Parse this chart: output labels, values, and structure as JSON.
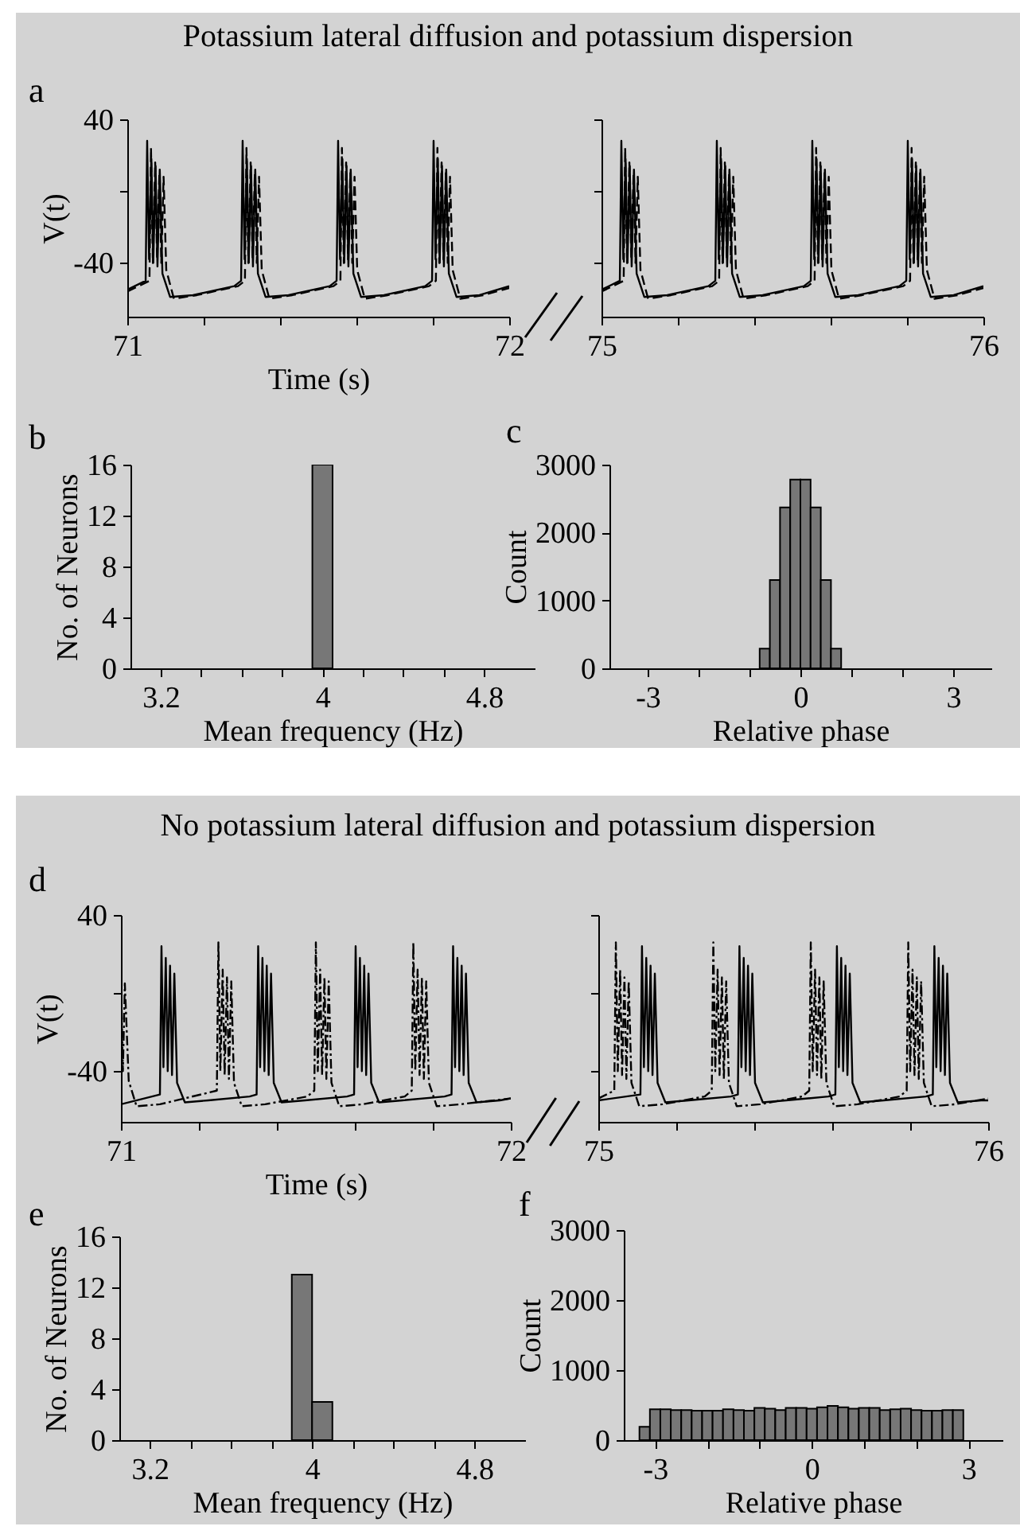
{
  "chart_data": [
    {
      "type": "line",
      "title": "Potassium lateral diffusion and potassium dispersion",
      "annotations": [
        "a"
      ],
      "xlabel": "Time (s)",
      "ylabel": "V(t)",
      "xlim": [
        71,
        72
      ],
      "xticks": [
        71,
        {
          "value": 71.2,
          "label": null
        },
        {
          "value": 71.4,
          "label": null
        },
        {
          "value": 71.6,
          "label": null
        },
        {
          "value": 71.8,
          "label": null
        },
        72
      ],
      "ylim": [
        -70,
        40
      ],
      "yticks": [
        -40,
        {
          "value": 0,
          "label": null
        },
        40
      ],
      "series": [
        {
          "color": "#000000",
          "line_style": "solid",
          "x": [
            71.0,
            71.048,
            71.052,
            71.057,
            71.063,
            71.068,
            71.074,
            71.079,
            71.085,
            71.092,
            71.112,
            71.172,
            71.28,
            71.298,
            71.302,
            71.307,
            71.313,
            71.318,
            71.324,
            71.329,
            71.335,
            71.342,
            71.362,
            71.422,
            71.53,
            71.548,
            71.552,
            71.557,
            71.563,
            71.568,
            71.574,
            71.579,
            71.585,
            71.592,
            71.612,
            71.672,
            71.78,
            71.798,
            71.802,
            71.807,
            71.813,
            71.818,
            71.824,
            71.829,
            71.835,
            71.842,
            71.862,
            71.922,
            72.0
          ],
          "values": [
            -55,
            -50,
            28,
            -38,
            18,
            -40,
            14,
            -42,
            12,
            -46,
            -59,
            -58,
            -53,
            -50,
            28,
            -38,
            18,
            -40,
            14,
            -42,
            12,
            -46,
            -59,
            -58,
            -53,
            -50,
            28,
            -38,
            18,
            -40,
            14,
            -42,
            12,
            -46,
            -59,
            -58,
            -53,
            -50,
            28,
            -38,
            18,
            -40,
            14,
            -42,
            12,
            -46,
            -59,
            -58,
            -53
          ]
        },
        {
          "color": "#000000",
          "line_style": "dashed",
          "x": [
            71.0,
            71.058,
            71.062,
            71.067,
            71.073,
            71.078,
            71.084,
            71.089,
            71.095,
            71.102,
            71.122,
            71.182,
            71.29,
            71.308,
            71.312,
            71.317,
            71.323,
            71.328,
            71.334,
            71.339,
            71.345,
            71.352,
            71.372,
            71.432,
            71.54,
            71.558,
            71.562,
            71.567,
            71.573,
            71.578,
            71.584,
            71.589,
            71.595,
            71.602,
            71.622,
            71.682,
            71.79,
            71.808,
            71.812,
            71.817,
            71.823,
            71.828,
            71.834,
            71.839,
            71.845,
            71.852,
            71.872,
            71.932,
            72.0
          ],
          "values": [
            -56,
            -50,
            24,
            -40,
            16,
            -38,
            10,
            -40,
            8,
            -44,
            -60,
            -58,
            -53,
            -50,
            24,
            -40,
            16,
            -38,
            10,
            -40,
            8,
            -44,
            -60,
            -58,
            -53,
            -50,
            24,
            -40,
            16,
            -38,
            10,
            -40,
            8,
            -44,
            -60,
            -58,
            -53,
            -50,
            24,
            -40,
            16,
            -38,
            10,
            -40,
            8,
            -44,
            -60,
            -58,
            -54
          ]
        }
      ]
    },
    {
      "type": "line",
      "tick_labels": "x",
      "xlim": [
        75,
        76
      ],
      "xticks": [
        75,
        {
          "value": 75.2,
          "label": null
        },
        {
          "value": 75.4,
          "label": null
        },
        {
          "value": 75.6,
          "label": null
        },
        {
          "value": 75.8,
          "label": null
        },
        76
      ],
      "ylim": [
        -70,
        40
      ],
      "yticks": [
        -40,
        0,
        40
      ],
      "series": [
        {
          "color": "#000000",
          "line_style": "solid",
          "x": [
            75.0,
            75.048,
            75.052,
            75.057,
            75.063,
            75.068,
            75.074,
            75.079,
            75.085,
            75.092,
            75.112,
            75.172,
            75.28,
            75.298,
            75.302,
            75.307,
            75.313,
            75.318,
            75.324,
            75.329,
            75.335,
            75.342,
            75.362,
            75.422,
            75.53,
            75.548,
            75.552,
            75.557,
            75.563,
            75.568,
            75.574,
            75.579,
            75.585,
            75.592,
            75.612,
            75.672,
            75.78,
            75.798,
            75.802,
            75.807,
            75.813,
            75.818,
            75.824,
            75.829,
            75.835,
            75.842,
            75.862,
            75.922,
            76.0
          ],
          "values": [
            -55,
            -50,
            28,
            -38,
            18,
            -40,
            14,
            -42,
            12,
            -46,
            -59,
            -58,
            -53,
            -50,
            28,
            -38,
            18,
            -40,
            14,
            -42,
            12,
            -46,
            -59,
            -58,
            -53,
            -50,
            28,
            -38,
            18,
            -40,
            14,
            -42,
            12,
            -46,
            -59,
            -58,
            -53,
            -50,
            28,
            -38,
            18,
            -40,
            14,
            -42,
            12,
            -46,
            -59,
            -58,
            -53
          ]
        },
        {
          "color": "#000000",
          "line_style": "dashed",
          "x": [
            75.0,
            75.058,
            75.062,
            75.067,
            75.073,
            75.078,
            75.084,
            75.089,
            75.095,
            75.102,
            75.122,
            75.182,
            75.29,
            75.308,
            75.312,
            75.317,
            75.323,
            75.328,
            75.334,
            75.339,
            75.345,
            75.352,
            75.372,
            75.432,
            75.54,
            75.558,
            75.562,
            75.567,
            75.573,
            75.578,
            75.584,
            75.589,
            75.595,
            75.602,
            75.622,
            75.682,
            75.79,
            75.808,
            75.812,
            75.817,
            75.823,
            75.828,
            75.834,
            75.839,
            75.845,
            75.852,
            75.872,
            75.932,
            76.0
          ],
          "values": [
            -56,
            -50,
            24,
            -40,
            16,
            -38,
            10,
            -40,
            8,
            -44,
            -60,
            -58,
            -53,
            -50,
            24,
            -40,
            16,
            -38,
            10,
            -40,
            8,
            -44,
            -60,
            -58,
            -53,
            -50,
            24,
            -40,
            16,
            -38,
            10,
            -40,
            8,
            -44,
            -60,
            -58,
            -53,
            -50,
            24,
            -40,
            16,
            -38,
            10,
            -40,
            8,
            -44,
            -60,
            -58,
            -54
          ]
        }
      ]
    },
    {
      "type": "histogram",
      "annotations": [
        "b"
      ],
      "xlabel": "Mean frequency (Hz)",
      "ylabel": "No. of Neurons",
      "color": "#777777",
      "xlim": [
        3.05,
        5.05
      ],
      "xticks": [
        3.2,
        {
          "value": 3.4,
          "label": null
        },
        {
          "value": 3.6,
          "label": null
        },
        {
          "value": 3.8,
          "label": null
        },
        4,
        {
          "value": 4.2,
          "label": null
        },
        {
          "value": 4.4,
          "label": null
        },
        {
          "value": 4.6,
          "label": null
        },
        4.8
      ],
      "ylim": [
        0,
        16
      ],
      "yticks": [
        0,
        4,
        8,
        12,
        16
      ],
      "bins": [
        3.95,
        4.05
      ],
      "values": [
        16
      ]
    },
    {
      "type": "histogram",
      "annotations": [
        "c"
      ],
      "xlabel": "Relative phase",
      "ylabel": "Count",
      "color": "#777777",
      "xlim": [
        -3.75,
        3.75
      ],
      "xticks": [
        -3,
        {
          "value": -2,
          "label": null
        },
        {
          "value": -1,
          "label": null
        },
        0,
        {
          "value": 1,
          "label": null
        },
        {
          "value": 2,
          "label": null
        },
        3
      ],
      "ylim": [
        0,
        3000
      ],
      "yticks": [
        0,
        1000,
        2000,
        3000
      ],
      "bins": [
        -0.8,
        -0.6,
        -0.4,
        -0.2,
        0,
        0.2,
        0.4,
        0.6,
        0.8
      ],
      "values": [
        290,
        1300,
        2370,
        2780,
        2780,
        2370,
        1300,
        290
      ]
    },
    {
      "type": "line",
      "title": "No potassium lateral diffusion and potassium dispersion",
      "annotations": [
        "d"
      ],
      "xlabel": "Time (s)",
      "ylabel": "V(t)",
      "xlim": [
        71,
        72
      ],
      "xticks": [
        71,
        {
          "value": 71.2,
          "label": null
        },
        {
          "value": 71.4,
          "label": null
        },
        {
          "value": 71.6,
          "label": null
        },
        {
          "value": 71.8,
          "label": null
        },
        72
      ],
      "ylim": [
        -66,
        40
      ],
      "yticks": [
        -40,
        {
          "value": 0,
          "label": null
        },
        40
      ],
      "series": [
        {
          "color": "#000000",
          "line_style": "solid",
          "x": [
            71.0,
            71.1,
            71.104,
            71.109,
            71.115,
            71.12,
            71.126,
            71.131,
            71.137,
            71.144,
            71.164,
            71.224,
            71.33,
            71.348,
            71.352,
            71.357,
            71.363,
            71.368,
            71.374,
            71.379,
            71.385,
            71.392,
            71.412,
            71.472,
            71.58,
            71.598,
            71.602,
            71.607,
            71.613,
            71.618,
            71.624,
            71.629,
            71.635,
            71.642,
            71.662,
            71.722,
            71.83,
            71.848,
            71.852,
            71.857,
            71.863,
            71.868,
            71.874,
            71.879,
            71.885,
            71.892,
            71.912,
            71.972,
            72.0
          ],
          "values": [
            -57,
            -52,
            24,
            -38,
            18,
            -40,
            14,
            -42,
            10,
            -46,
            -56,
            -55,
            -53,
            -52,
            24,
            -38,
            18,
            -40,
            14,
            -42,
            10,
            -46,
            -56,
            -55,
            -53,
            -52,
            24,
            -38,
            18,
            -40,
            14,
            -42,
            10,
            -46,
            -56,
            -55,
            -53,
            -52,
            24,
            -38,
            18,
            -40,
            14,
            -42,
            10,
            -46,
            -56,
            -55,
            -54
          ]
        },
        {
          "color": "#000000",
          "line_style": "dashdot",
          "x": [
            71.0,
            71.005,
            71.01,
            71.02,
            71.04,
            71.1,
            71.246,
            71.25,
            71.255,
            71.261,
            71.266,
            71.272,
            71.277,
            71.283,
            71.29,
            71.31,
            71.37,
            71.478,
            71.496,
            71.5,
            71.505,
            71.511,
            71.516,
            71.522,
            71.527,
            71.533,
            71.54,
            71.56,
            71.62,
            71.728,
            71.746,
            71.75,
            71.755,
            71.761,
            71.766,
            71.772,
            71.777,
            71.783,
            71.79,
            71.81,
            71.87,
            72.0
          ],
          "values": [
            10,
            -40,
            5,
            -45,
            -58,
            -57,
            -50,
            26,
            -40,
            12,
            -42,
            8,
            -44,
            6,
            -46,
            -58,
            -57,
            -53,
            -50,
            26,
            -40,
            12,
            -42,
            8,
            -44,
            6,
            -46,
            -58,
            -57,
            -53,
            -50,
            26,
            -40,
            12,
            -42,
            8,
            -44,
            6,
            -46,
            -58,
            -57,
            -54
          ]
        }
      ]
    },
    {
      "type": "line",
      "tick_labels": "x",
      "xlim": [
        75,
        76
      ],
      "xticks": [
        75,
        {
          "value": 75.2,
          "label": null
        },
        {
          "value": 75.4,
          "label": null
        },
        {
          "value": 75.6,
          "label": null
        },
        {
          "value": 75.8,
          "label": null
        },
        76
      ],
      "ylim": [
        -66,
        40
      ],
      "yticks": [
        -40,
        0,
        40
      ],
      "series": [
        {
          "color": "#000000",
          "line_style": "solid",
          "x": [
            75.0,
            75.108,
            75.112,
            75.117,
            75.123,
            75.128,
            75.134,
            75.139,
            75.145,
            75.152,
            75.172,
            75.232,
            75.34,
            75.358,
            75.362,
            75.367,
            75.373,
            75.378,
            75.384,
            75.389,
            75.395,
            75.402,
            75.422,
            75.482,
            75.59,
            75.608,
            75.612,
            75.617,
            75.623,
            75.628,
            75.634,
            75.639,
            75.645,
            75.652,
            75.672,
            75.732,
            75.84,
            75.858,
            75.862,
            75.867,
            75.873,
            75.878,
            75.884,
            75.889,
            75.895,
            75.902,
            75.922,
            75.982,
            76.0
          ],
          "values": [
            -55,
            -52,
            24,
            -38,
            18,
            -40,
            14,
            -42,
            10,
            -46,
            -56,
            -55,
            -53,
            -52,
            24,
            -38,
            18,
            -40,
            14,
            -42,
            10,
            -46,
            -56,
            -55,
            -53,
            -52,
            24,
            -38,
            18,
            -40,
            14,
            -42,
            10,
            -46,
            -56,
            -55,
            -53,
            -52,
            24,
            -38,
            18,
            -40,
            14,
            -42,
            10,
            -46,
            -56,
            -55,
            -55
          ]
        },
        {
          "color": "#000000",
          "line_style": "dashdot",
          "x": [
            75.0,
            75.041,
            75.045,
            75.05,
            75.056,
            75.061,
            75.067,
            75.072,
            75.078,
            75.085,
            75.105,
            75.165,
            75.273,
            75.291,
            75.295,
            75.3,
            75.306,
            75.311,
            75.317,
            75.322,
            75.328,
            75.335,
            75.355,
            75.415,
            75.523,
            75.541,
            75.545,
            75.55,
            75.556,
            75.561,
            75.567,
            75.572,
            75.578,
            75.585,
            75.605,
            75.665,
            75.773,
            75.791,
            75.795,
            75.8,
            75.806,
            75.811,
            75.817,
            75.822,
            75.828,
            75.835,
            75.855,
            75.915,
            76.0
          ],
          "values": [
            -54,
            -50,
            26,
            -40,
            12,
            -42,
            8,
            -44,
            6,
            -46,
            -58,
            -57,
            -53,
            -50,
            26,
            -40,
            12,
            -42,
            8,
            -44,
            6,
            -46,
            -58,
            -57,
            -53,
            -50,
            26,
            -40,
            12,
            -42,
            8,
            -44,
            6,
            -46,
            -58,
            -57,
            -53,
            -50,
            26,
            -40,
            12,
            -42,
            8,
            -44,
            6,
            -46,
            -58,
            -57,
            -54
          ]
        }
      ]
    },
    {
      "type": "histogram",
      "annotations": [
        "e"
      ],
      "xlabel": "Mean frequency (Hz)",
      "ylabel": "No. of Neurons",
      "color": "#777777",
      "xlim": [
        3.05,
        5.05
      ],
      "xticks": [
        3.2,
        {
          "value": 3.4,
          "label": null
        },
        {
          "value": 3.6,
          "label": null
        },
        {
          "value": 3.8,
          "label": null
        },
        4,
        {
          "value": 4.2,
          "label": null
        },
        {
          "value": 4.4,
          "label": null
        },
        {
          "value": 4.6,
          "label": null
        },
        4.8
      ],
      "ylim": [
        0,
        16
      ],
      "yticks": [
        0,
        4,
        8,
        12,
        16
      ],
      "bins": [
        3.9,
        4.0,
        4.1
      ],
      "values": [
        13,
        3
      ]
    },
    {
      "type": "histogram",
      "annotations": [
        "f"
      ],
      "xlabel": "Relative phase",
      "ylabel": "Count",
      "color": "#777777",
      "xlim": [
        -3.6,
        3.65
      ],
      "xticks": [
        -3,
        {
          "value": -2,
          "label": null
        },
        {
          "value": -1,
          "label": null
        },
        0,
        {
          "value": 1,
          "label": null
        },
        {
          "value": 2,
          "label": null
        },
        3
      ],
      "ylim": [
        0,
        3000
      ],
      "yticks": [
        0,
        1000,
        2000,
        3000
      ],
      "bins": [
        -3.3,
        -3.1,
        -2.9,
        -2.7,
        -2.5,
        -2.3,
        -2.1,
        -1.9,
        -1.7,
        -1.5,
        -1.3,
        -1.1,
        -0.9,
        -0.7,
        -0.5,
        -0.3,
        -0.1,
        0.1,
        0.3,
        0.5,
        0.7,
        0.9,
        1.1,
        1.3,
        1.5,
        1.7,
        1.9,
        2.1,
        2.3,
        2.5,
        2.7,
        2.9
      ],
      "values": [
        190,
        440,
        440,
        430,
        430,
        420,
        420,
        420,
        440,
        430,
        420,
        460,
        450,
        430,
        460,
        460,
        450,
        470,
        490,
        470,
        450,
        460,
        460,
        430,
        440,
        450,
        430,
        420,
        420,
        430,
        430
      ]
    }
  ]
}
